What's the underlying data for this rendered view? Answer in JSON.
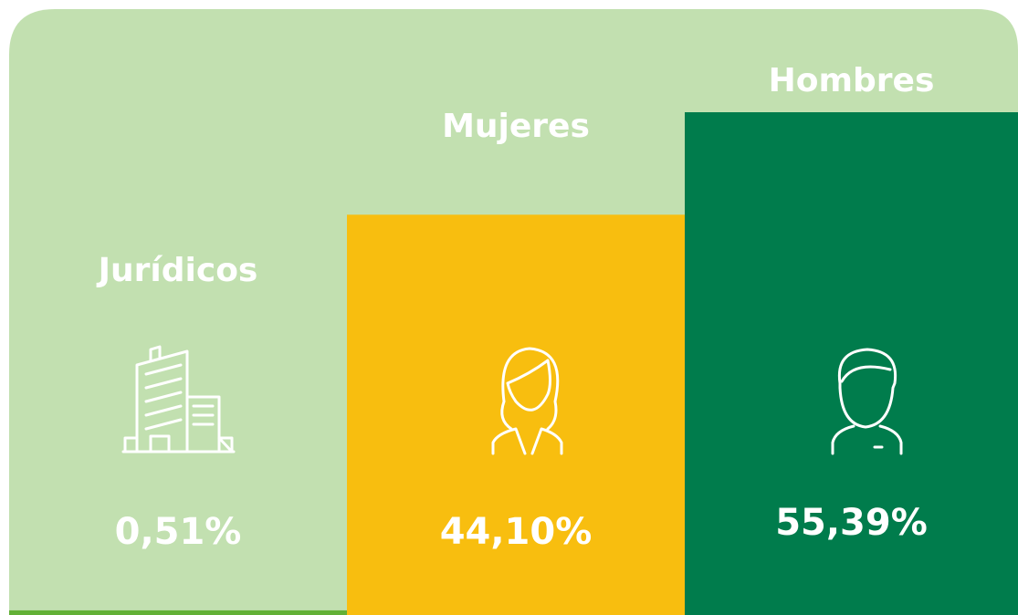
{
  "chart_data": {
    "type": "bar",
    "categories": [
      "Jurídicos",
      "Mujeres",
      "Hombres"
    ],
    "values": [
      0.51,
      44.1,
      55.39
    ],
    "value_labels": [
      "0,51%",
      "44,10%",
      "55,39%"
    ],
    "colors": [
      "#62b036",
      "#f8be0f",
      "#007c4c"
    ]
  }
}
